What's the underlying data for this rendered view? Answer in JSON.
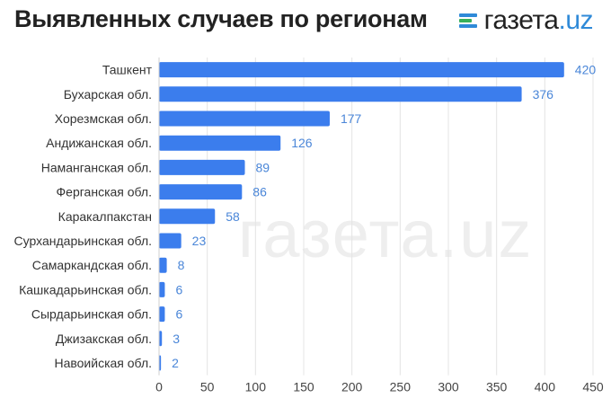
{
  "header": {
    "title": "Выявленных случаев по регионам",
    "logo_main": "газета",
    "logo_dot": ".",
    "logo_suffix": "uz",
    "watermark": "газета.uz"
  },
  "colors": {
    "bar": "#3b7ded",
    "label": "#4a86d8",
    "grid": "#e4e4e4",
    "text": "#333333",
    "logo_accent": "#2f8ad8",
    "logo_green": "#38b05a"
  },
  "chart_data": {
    "type": "bar",
    "orientation": "horizontal",
    "title": "Выявленных случаев по регионам",
    "categories": [
      "Ташкент",
      "Бухарская обл.",
      "Хорезмская обл.",
      "Андижанская обл.",
      "Наманганская обл.",
      "Ферганская обл.",
      "Каракалпакстан",
      "Сурхандарьинская обл.",
      "Самаркандская  обл.",
      "Кашкадарьинская обл.",
      "Сырдарьинская обл.",
      "Джизакская обл.",
      "Навоийская обл."
    ],
    "values": [
      420,
      376,
      177,
      126,
      89,
      86,
      58,
      23,
      8,
      6,
      6,
      3,
      2
    ],
    "xlim": [
      0,
      450
    ],
    "xticks": [
      0,
      50,
      100,
      150,
      200,
      250,
      300,
      350,
      400,
      450
    ],
    "grid": true,
    "legend": "none",
    "data_labels": true
  }
}
